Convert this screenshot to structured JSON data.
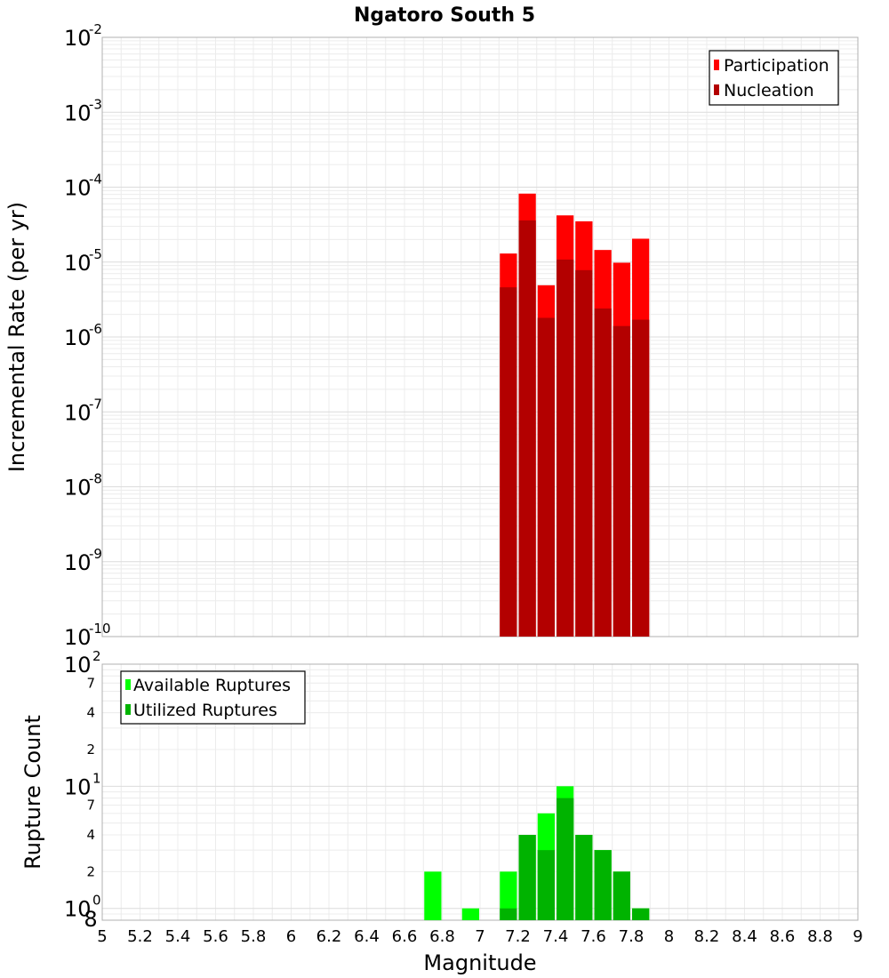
{
  "chart_data": [
    {
      "type": "bar",
      "title": "Ngatoro South 5",
      "ylabel": "Incremental Rate (per yr)",
      "xlabel": "",
      "yscale": "log",
      "ylim": [
        1e-10,
        0.01
      ],
      "xlim": [
        5,
        9
      ],
      "bar_width": 0.1,
      "y_ticks": [
        {
          "base": "10",
          "exp": "-10"
        },
        {
          "base": "10",
          "exp": "-9"
        },
        {
          "base": "10",
          "exp": "-8"
        },
        {
          "base": "10",
          "exp": "-7"
        },
        {
          "base": "10",
          "exp": "-6"
        },
        {
          "base": "10",
          "exp": "-5"
        },
        {
          "base": "10",
          "exp": "-4"
        },
        {
          "base": "10",
          "exp": "-3"
        },
        {
          "base": "10",
          "exp": "-2"
        }
      ],
      "legend_position": "top-right",
      "series": [
        {
          "name": "Participation",
          "color": "#ff0000",
          "points": [
            {
              "x": 7.15,
              "y": 1.3e-05
            },
            {
              "x": 7.25,
              "y": 8.2e-05
            },
            {
              "x": 7.35,
              "y": 4.9e-06
            },
            {
              "x": 7.45,
              "y": 4.2e-05
            },
            {
              "x": 7.55,
              "y": 3.5e-05
            },
            {
              "x": 7.65,
              "y": 1.45e-05
            },
            {
              "x": 7.75,
              "y": 9.8e-06
            },
            {
              "x": 7.85,
              "y": 2.05e-05
            }
          ]
        },
        {
          "name": "Nucleation",
          "color": "#b30000",
          "points": [
            {
              "x": 7.15,
              "y": 4.6e-06
            },
            {
              "x": 7.25,
              "y": 3.6e-05
            },
            {
              "x": 7.35,
              "y": 1.8e-06
            },
            {
              "x": 7.45,
              "y": 1.08e-05
            },
            {
              "x": 7.55,
              "y": 7.8e-06
            },
            {
              "x": 7.65,
              "y": 2.4e-06
            },
            {
              "x": 7.75,
              "y": 1.4e-06
            },
            {
              "x": 7.85,
              "y": 1.7e-06
            }
          ]
        }
      ]
    },
    {
      "type": "bar",
      "title": "",
      "ylabel": "Rupture Count",
      "xlabel": "Magnitude",
      "yscale": "log",
      "ylim": [
        0.8,
        100
      ],
      "xlim": [
        5,
        9
      ],
      "bar_width": 0.1,
      "x_ticks": [
        "5",
        "5.2",
        "5.4",
        "5.6",
        "5.8",
        "6",
        "6.2",
        "6.4",
        "6.6",
        "6.8",
        "7",
        "7.2",
        "7.4",
        "7.6",
        "7.8",
        "8",
        "8.2",
        "8.4",
        "8.6",
        "8.8",
        "9"
      ],
      "y_ticks": [
        {
          "base": "10",
          "exp": "0"
        },
        {
          "base": "10",
          "exp": "1"
        },
        {
          "base": "10",
          "exp": "2"
        }
      ],
      "y_minor_labels": [
        "2",
        "4",
        "7",
        "2",
        "4",
        "7"
      ],
      "y_bottom_label": "8",
      "legend_position": "top-left",
      "series": [
        {
          "name": "Available Ruptures",
          "color": "#00ff00",
          "points": [
            {
              "x": 6.75,
              "y": 2
            },
            {
              "x": 6.95,
              "y": 1
            },
            {
              "x": 7.15,
              "y": 2
            },
            {
              "x": 7.25,
              "y": 4
            },
            {
              "x": 7.35,
              "y": 6
            },
            {
              "x": 7.45,
              "y": 10
            },
            {
              "x": 7.55,
              "y": 4
            },
            {
              "x": 7.65,
              "y": 3
            },
            {
              "x": 7.75,
              "y": 2
            },
            {
              "x": 7.85,
              "y": 1
            }
          ]
        },
        {
          "name": "Utilized Ruptures",
          "color": "#00b300",
          "points": [
            {
              "x": 7.15,
              "y": 1
            },
            {
              "x": 7.25,
              "y": 4
            },
            {
              "x": 7.35,
              "y": 3
            },
            {
              "x": 7.45,
              "y": 8
            },
            {
              "x": 7.55,
              "y": 4
            },
            {
              "x": 7.65,
              "y": 3
            },
            {
              "x": 7.75,
              "y": 2
            },
            {
              "x": 7.85,
              "y": 1
            }
          ]
        }
      ]
    }
  ]
}
